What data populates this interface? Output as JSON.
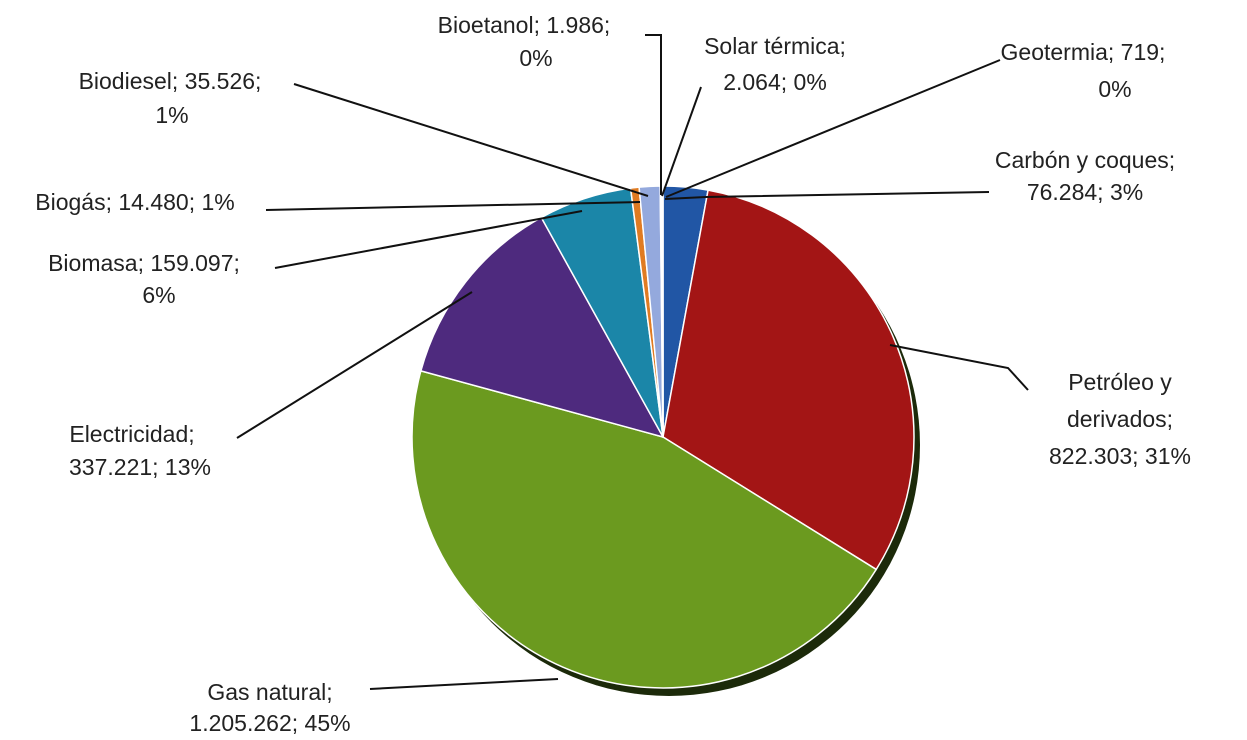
{
  "chart_data": {
    "type": "pie",
    "title": "",
    "legend": "none",
    "labels_format": "name; value; percent",
    "slices": [
      {
        "name": "Carbón y coques",
        "value_text": "76.284",
        "value": 76284,
        "percent_text": "3%",
        "color": "#2156a5"
      },
      {
        "name": "Petróleo y derivados",
        "value_text": "822.303",
        "value": 822303,
        "percent_text": "31%",
        "color": "#a31515"
      },
      {
        "name": "Gas natural",
        "value_text": "1.205.262",
        "value": 1205262,
        "percent_text": "45%",
        "color": "#6b9a1f"
      },
      {
        "name": "Electricidad",
        "value_text": "337.221",
        "value": 337221,
        "percent_text": "13%",
        "color": "#4e2a7e"
      },
      {
        "name": "Biomasa",
        "value_text": "159.097",
        "value": 159097,
        "percent_text": "6%",
        "color": "#1b86a8"
      },
      {
        "name": "Biogás",
        "value_text": "14.480",
        "value": 14480,
        "percent_text": "1%",
        "color": "#e07b22"
      },
      {
        "name": "Biodiesel",
        "value_text": "35.526",
        "value": 35526,
        "percent_text": "1%",
        "color": "#94a9dd"
      },
      {
        "name": "Bioetanol",
        "value_text": "1.986",
        "value": 1986,
        "percent_text": "0%",
        "color": "#c0504d"
      },
      {
        "name": "Solar térmica",
        "value_text": "2.064",
        "value": 2064,
        "percent_text": "0%",
        "color": "#9bbb59"
      },
      {
        "name": "Geotermia",
        "value_text": "719",
        "value": 719,
        "percent_text": "0%",
        "color": "#8064a2"
      }
    ]
  }
}
